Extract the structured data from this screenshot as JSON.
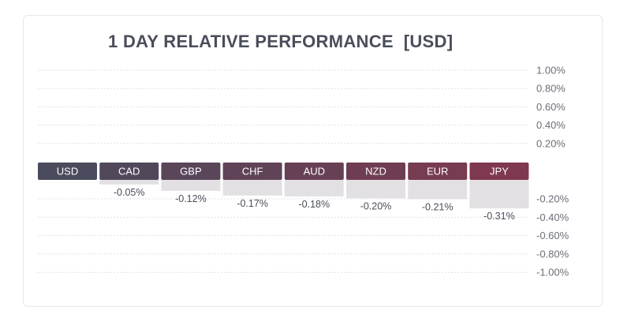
{
  "chart_data": {
    "type": "bar",
    "title": "1 DAY RELATIVE PERFORMANCE  [USD]",
    "categories": [
      "USD",
      "CAD",
      "GBP",
      "CHF",
      "AUD",
      "NZD",
      "EUR",
      "JPY"
    ],
    "values": [
      0,
      -0.05,
      -0.12,
      -0.17,
      -0.18,
      -0.2,
      -0.21,
      -0.31
    ],
    "value_labels": [
      "",
      "-0.05%",
      "-0.12%",
      "-0.17%",
      "-0.18%",
      "-0.20%",
      "-0.21%",
      "-0.31%"
    ],
    "positive_ticks": [
      "1.00%",
      "0.80%",
      "0.60%",
      "0.40%",
      "0.20%"
    ],
    "negative_ticks": [
      "-0.20%",
      "-0.40%",
      "-0.60%",
      "-0.80%",
      "-1.00%"
    ],
    "ylim": [
      -1.0,
      1.0
    ],
    "grid": true,
    "colors": {
      "label_tab_start": "#4a4b5c",
      "label_tab_end": "#7e3850",
      "negative_bar": "#e3e0e3",
      "gridline": "#dfe1e6",
      "tick_text": "#6b6e78"
    }
  }
}
